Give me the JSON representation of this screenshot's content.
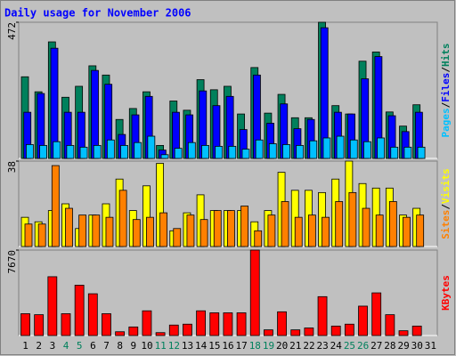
{
  "chart_data": [
    {
      "type": "bar",
      "title": "Daily usage for November 2006",
      "ylim": [
        0,
        472
      ],
      "yticks": [
        472
      ],
      "legend_separator": "/",
      "series": [
        {
          "name": "Hits",
          "color": "#00805c",
          "values": [
            283,
            231,
            404,
            212,
            250,
            321,
            289,
            135,
            173,
            231,
            45,
            199,
            167,
            273,
            238,
            250,
            154,
            315,
            157,
            222,
            141,
            141,
            472,
            183,
            154,
            337,
            369,
            161,
            112,
            186,
            null
          ]
        },
        {
          "name": "Files",
          "color": "#0000ff",
          "values": [
            160,
            225,
            382,
            160,
            160,
            305,
            257,
            83,
            151,
            215,
            29,
            160,
            151,
            234,
            183,
            215,
            100,
            289,
            122,
            189,
            103,
            135,
            453,
            160,
            154,
            276,
            353,
            148,
            93,
            160,
            null
          ]
        },
        {
          "name": "Pages",
          "color": "#00c0ff",
          "values": [
            48,
            45,
            58,
            45,
            39,
            45,
            64,
            45,
            55,
            77,
            13,
            35,
            55,
            45,
            42,
            42,
            32,
            64,
            51,
            48,
            45,
            61,
            71,
            77,
            64,
            58,
            71,
            39,
            39,
            39,
            null
          ]
        }
      ]
    },
    {
      "type": "bar",
      "ylim": [
        0,
        38
      ],
      "yticks": [
        38
      ],
      "legend_separator": "/",
      "series": [
        {
          "name": "Visits",
          "color": "#ffff00",
          "values": [
            13,
            11,
            16,
            19,
            8,
            14,
            19,
            30,
            16,
            27,
            37,
            7,
            15,
            23,
            16,
            16,
            16,
            11,
            16,
            33,
            25,
            25,
            24,
            30,
            38,
            28,
            26,
            26,
            14,
            17,
            null
          ]
        },
        {
          "name": "Sites",
          "color": "#ff8000",
          "values": [
            10,
            10,
            36,
            17,
            14,
            14,
            13,
            25,
            12,
            13,
            15,
            8,
            14,
            12,
            16,
            16,
            18,
            7,
            14,
            20,
            13,
            14,
            13,
            20,
            24,
            17,
            14,
            20,
            13,
            14,
            null
          ]
        }
      ]
    },
    {
      "type": "bar",
      "ylim": [
        0,
        7670
      ],
      "yticks": [
        7670
      ],
      "categories": [
        "1",
        "2",
        "3",
        "4",
        "5",
        "6",
        "7",
        "8",
        "9",
        "10",
        "11",
        "12",
        "13",
        "14",
        "15",
        "16",
        "17",
        "18",
        "19",
        "20",
        "21",
        "22",
        "23",
        "24",
        "25",
        "26",
        "27",
        "28",
        "29",
        "30",
        "31"
      ],
      "category_colors": [
        "#000000",
        "#000000",
        "#000000",
        "#00805c",
        "#00805c",
        "#000000",
        "#000000",
        "#000000",
        "#000000",
        "#000000",
        "#00805c",
        "#00805c",
        "#000000",
        "#000000",
        "#000000",
        "#000000",
        "#000000",
        "#00805c",
        "#00805c",
        "#000000",
        "#000000",
        "#000000",
        "#000000",
        "#000000",
        "#00805c",
        "#00805c",
        "#000000",
        "#000000",
        "#000000",
        "#000000",
        "#000000"
      ],
      "series": [
        {
          "name": "KBytes",
          "color": "#ff0000",
          "values": [
            1960,
            1870,
            5280,
            1960,
            4520,
            3750,
            1960,
            340,
            770,
            2220,
            260,
            940,
            1020,
            2220,
            2040,
            2040,
            2040,
            7670,
            510,
            2130,
            510,
            680,
            3490,
            850,
            1020,
            2640,
            3830,
            1870,
            430,
            850,
            null
          ]
        }
      ]
    }
  ]
}
